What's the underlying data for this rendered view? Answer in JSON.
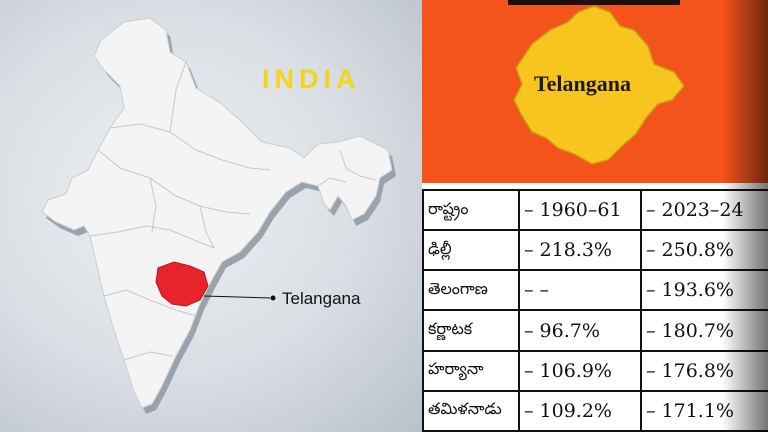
{
  "map": {
    "country_label": "INDIA",
    "highlight_label": "Telangana",
    "colors": {
      "country_fill": "#f4f4f4",
      "highlight_fill": "#e8232a",
      "title": "#f2d51c"
    }
  },
  "state_card": {
    "label": "Telangana",
    "colors": {
      "background": "#f4541b",
      "state_fill": "#f7c51e"
    }
  },
  "table": {
    "header": [
      "రాష్ట్రం",
      "– 1960–61",
      "– 2023–24"
    ],
    "rows": [
      [
        "ఢిల్లీ",
        "– 218.3%",
        "– 250.8%"
      ],
      [
        "తెలంగాణ",
        "– –",
        "– 193.6%"
      ],
      [
        "కర్ణాటక",
        "– 96.7%",
        "– 180.7%"
      ],
      [
        "హర్యానా",
        "– 106.9%",
        "– 176.8%"
      ],
      [
        "తమిళనాడు",
        "– 109.2%",
        "– 171.1%"
      ]
    ]
  }
}
